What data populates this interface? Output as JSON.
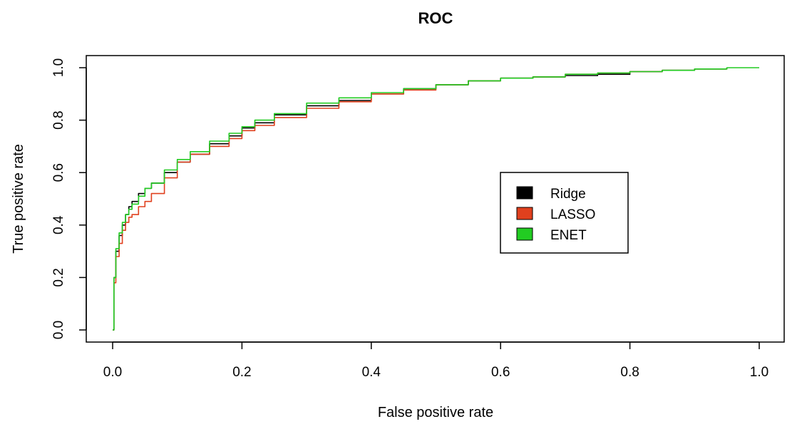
{
  "chart_data": {
    "type": "line",
    "title": "ROC",
    "xlabel": "False positive rate",
    "ylabel": "True positive rate",
    "xlim": [
      0,
      1
    ],
    "ylim": [
      0,
      1
    ],
    "x_ticks": [
      "0.0",
      "0.2",
      "0.4",
      "0.6",
      "0.8",
      "1.0"
    ],
    "y_ticks": [
      "0.0",
      "0.2",
      "0.4",
      "0.6",
      "0.8",
      "1.0"
    ],
    "grid": false,
    "legend_position": "center-right",
    "series": [
      {
        "name": "Ridge",
        "color": "#000000",
        "x": [
          0,
          0.002,
          0.005,
          0.01,
          0.015,
          0.02,
          0.025,
          0.03,
          0.04,
          0.05,
          0.06,
          0.08,
          0.1,
          0.12,
          0.15,
          0.18,
          0.2,
          0.22,
          0.25,
          0.3,
          0.35,
          0.4,
          0.45,
          0.5,
          0.55,
          0.6,
          0.65,
          0.7,
          0.75,
          0.8,
          0.85,
          0.9,
          0.95
        ],
        "y": [
          0,
          0.2,
          0.3,
          0.36,
          0.4,
          0.44,
          0.47,
          0.49,
          0.52,
          0.54,
          0.56,
          0.6,
          0.64,
          0.67,
          0.71,
          0.74,
          0.77,
          0.79,
          0.82,
          0.855,
          0.875,
          0.9,
          0.92,
          0.935,
          0.95,
          0.96,
          0.965,
          0.97,
          0.975,
          0.985,
          0.99,
          0.995,
          1.0
        ]
      },
      {
        "name": "LASSO",
        "color": "#e0401e",
        "x": [
          0,
          0.002,
          0.005,
          0.01,
          0.015,
          0.02,
          0.025,
          0.03,
          0.04,
          0.05,
          0.06,
          0.08,
          0.1,
          0.12,
          0.15,
          0.18,
          0.2,
          0.22,
          0.25,
          0.3,
          0.35,
          0.4,
          0.45,
          0.5,
          0.55,
          0.6,
          0.65,
          0.7,
          0.75,
          0.8,
          0.85,
          0.9,
          0.95
        ],
        "y": [
          0,
          0.18,
          0.28,
          0.33,
          0.38,
          0.41,
          0.43,
          0.44,
          0.47,
          0.49,
          0.52,
          0.58,
          0.64,
          0.67,
          0.7,
          0.73,
          0.76,
          0.78,
          0.81,
          0.845,
          0.87,
          0.9,
          0.915,
          0.935,
          0.95,
          0.96,
          0.965,
          0.975,
          0.98,
          0.985,
          0.99,
          0.995,
          1.0
        ]
      },
      {
        "name": "ENET",
        "color": "#22cc22",
        "x": [
          0,
          0.002,
          0.005,
          0.01,
          0.015,
          0.02,
          0.025,
          0.03,
          0.04,
          0.05,
          0.06,
          0.08,
          0.1,
          0.12,
          0.15,
          0.18,
          0.2,
          0.22,
          0.25,
          0.3,
          0.35,
          0.4,
          0.45,
          0.5,
          0.55,
          0.6,
          0.65,
          0.7,
          0.75,
          0.8,
          0.85,
          0.9,
          0.95,
          1.0
        ],
        "y": [
          0,
          0.2,
          0.31,
          0.37,
          0.41,
          0.44,
          0.46,
          0.48,
          0.51,
          0.54,
          0.56,
          0.61,
          0.65,
          0.68,
          0.72,
          0.75,
          0.775,
          0.8,
          0.825,
          0.865,
          0.885,
          0.905,
          0.92,
          0.935,
          0.95,
          0.96,
          0.965,
          0.975,
          0.98,
          0.985,
          0.99,
          0.995,
          1.0,
          1.0
        ]
      }
    ]
  }
}
